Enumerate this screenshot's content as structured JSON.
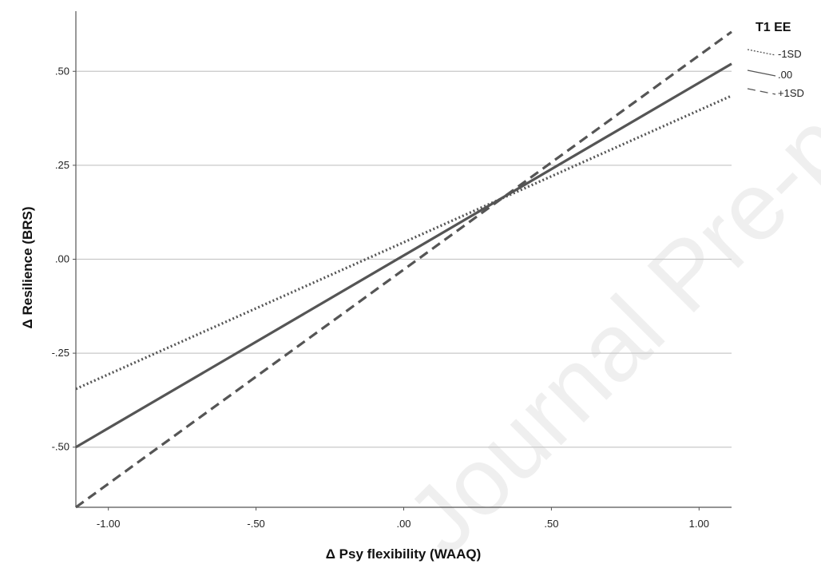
{
  "chart_data": {
    "type": "line",
    "xlabel": "Δ Psy flexibility (WAAQ)",
    "ylabel": "Δ Resilience (BRS)",
    "xlim": [
      -1.11,
      1.11
    ],
    "ylim": [
      -0.66,
      0.66
    ],
    "x_ticks": [
      -1.0,
      -0.5,
      0.0,
      0.5,
      1.0
    ],
    "x_tick_labels": [
      "-1.00",
      "-.50",
      ".00",
      ".50",
      "1.00"
    ],
    "y_ticks": [
      -0.5,
      -0.25,
      0.0,
      0.25,
      0.5
    ],
    "y_tick_labels": [
      "-.50",
      "-.25",
      ".00",
      ".25",
      ".50"
    ],
    "grid": "horizontal",
    "legend": {
      "title": "T1 EE",
      "placement": "top-right"
    },
    "series": [
      {
        "name": "-1SD",
        "style": "dotted",
        "color": "#555555",
        "x": [
          -1.11,
          1.11
        ],
        "y": [
          -0.345,
          0.435
        ]
      },
      {
        "name": ".00",
        "style": "solid",
        "color": "#555555",
        "x": [
          -1.11,
          1.11
        ],
        "y": [
          -0.5,
          0.52
        ]
      },
      {
        "name": "+1SD",
        "style": "dashed",
        "color": "#555555",
        "x": [
          -1.11,
          1.11
        ],
        "y": [
          -0.66,
          0.605
        ]
      }
    ]
  },
  "watermark": "Journal Pre-proof"
}
